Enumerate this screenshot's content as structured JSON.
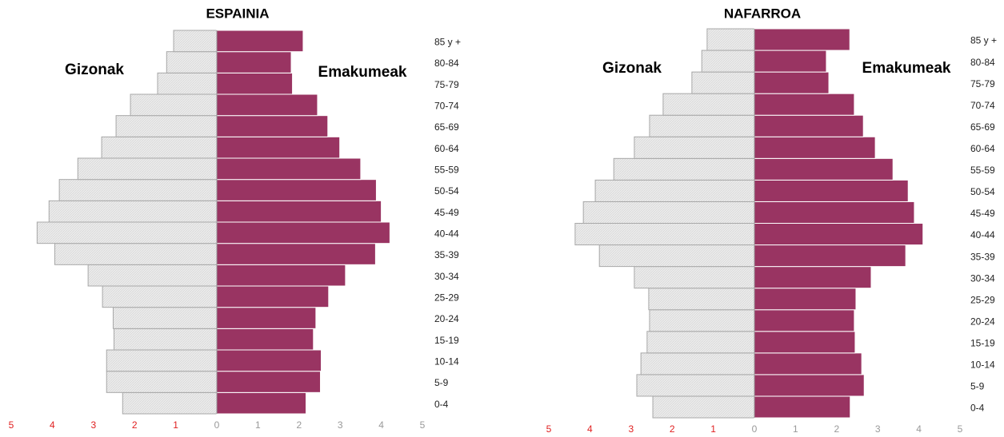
{
  "chart_data": [
    {
      "type": "pyramid",
      "title": "ESPAINIA",
      "categories": [
        "0-4",
        "5-9",
        "10-14",
        "15-19",
        "20-24",
        "25-29",
        "30-34",
        "35-39",
        "40-44",
        "45-49",
        "50-54",
        "55-59",
        "60-64",
        "65-69",
        "70-74",
        "75-79",
        "80-84",
        "85 y +"
      ],
      "series": [
        {
          "name": "Gizonak",
          "color": "#e6e6e6",
          "values": [
            2.29,
            2.68,
            2.68,
            2.5,
            2.52,
            2.78,
            3.13,
            3.94,
            4.37,
            4.08,
            3.83,
            3.38,
            2.8,
            2.45,
            2.1,
            1.44,
            1.22,
            1.05
          ]
        },
        {
          "name": "Emakumeak",
          "color": "#993462",
          "values": [
            2.17,
            2.52,
            2.54,
            2.35,
            2.41,
            2.72,
            3.13,
            3.86,
            4.21,
            4.0,
            3.88,
            3.5,
            2.99,
            2.7,
            2.45,
            1.84,
            1.81,
            2.1
          ]
        }
      ],
      "xlim": [
        -5,
        5
      ],
      "xticks": [
        {
          "value": -5,
          "label": "5"
        },
        {
          "value": -4,
          "label": "4"
        },
        {
          "value": -3,
          "label": "3"
        },
        {
          "value": -2,
          "label": "2"
        },
        {
          "value": -1,
          "label": "1"
        },
        0,
        1,
        2,
        3,
        4,
        5
      ],
      "negative_tick_color": "#e02020",
      "positive_tick_color": "#999999"
    },
    {
      "type": "pyramid",
      "title": "NAFARROA",
      "categories": [
        "0-4",
        "5-9",
        "10-14",
        "15-19",
        "20-24",
        "25-29",
        "30-34",
        "35-39",
        "40-44",
        "45-49",
        "50-54",
        "55-59",
        "60-64",
        "65-69",
        "70-74",
        "75-79",
        "80-84",
        "85 y +"
      ],
      "series": [
        {
          "name": "Gizonak",
          "color": "#e6e6e6",
          "values": [
            2.47,
            2.86,
            2.76,
            2.61,
            2.55,
            2.57,
            2.92,
            3.77,
            4.36,
            4.16,
            3.87,
            3.42,
            2.92,
            2.55,
            2.22,
            1.52,
            1.28,
            1.15
          ]
        },
        {
          "name": "Emakumeak",
          "color": "#993462",
          "values": [
            2.33,
            2.67,
            2.61,
            2.45,
            2.43,
            2.47,
            2.84,
            3.68,
            4.1,
            3.89,
            3.74,
            3.37,
            2.94,
            2.65,
            2.43,
            1.81,
            1.75,
            2.32
          ]
        }
      ],
      "xlim": [
        -5,
        5
      ],
      "xticks": [
        {
          "value": -5,
          "label": "5"
        },
        {
          "value": -4,
          "label": "4"
        },
        {
          "value": -3,
          "label": "3"
        },
        {
          "value": -2,
          "label": "2"
        },
        {
          "value": -1,
          "label": "1"
        },
        0,
        1,
        2,
        3,
        4,
        5
      ],
      "negative_tick_color": "#e02020",
      "positive_tick_color": "#999999"
    }
  ]
}
